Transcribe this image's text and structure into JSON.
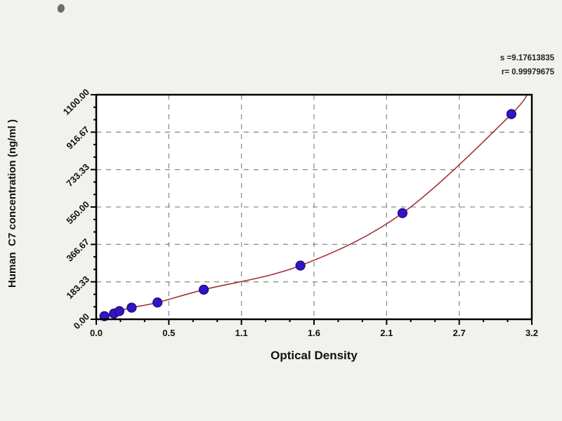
{
  "chart": {
    "xlabel": "Optical Density",
    "ylabel": "Human  C7 concentration (ng/ml )",
    "annotation": {
      "s_line": "s =9.17613835",
      "r_line": "r= 0.99979675"
    }
  },
  "chart_data": {
    "type": "scatter",
    "title": "",
    "xlabel": "Optical Density",
    "ylabel": "Human C7 concentration (ng/ml)",
    "xlim": [
      0,
      3.2
    ],
    "ylim": [
      0,
      1100
    ],
    "x_ticks": {
      "values": [
        0,
        0.5333,
        1.0667,
        1.6,
        2.1333,
        2.6667,
        3.2
      ],
      "labels": [
        "0.0",
        "0.5",
        "1.1",
        "1.6",
        "2.1",
        "2.7",
        "3.2"
      ]
    },
    "y_ticks": {
      "values": [
        0,
        183.33,
        366.67,
        550,
        733.33,
        916.67,
        1100
      ],
      "labels": [
        "0.00",
        "183.33",
        "366.67",
        "550.00",
        "733.33",
        "916.67",
        "1100.00"
      ]
    },
    "minor_ticks_per_interval": 2,
    "grid": "dashed",
    "legend": "none",
    "annotations": [
      "s =9.17613835",
      "r= 0.99979675"
    ],
    "series": [
      {
        "name": "standard-points",
        "type": "scatter",
        "color": "#3314c6",
        "points": [
          [
            0.06,
            15
          ],
          [
            0.13,
            28
          ],
          [
            0.17,
            40
          ],
          [
            0.26,
            57
          ],
          [
            0.45,
            82
          ],
          [
            0.79,
            145
          ],
          [
            1.5,
            263
          ],
          [
            2.25,
            520
          ],
          [
            3.05,
            1005
          ]
        ]
      },
      {
        "name": "fitted-curve",
        "type": "line",
        "color": "#a13036",
        "points": [
          [
            0.03,
            10
          ],
          [
            0.06,
            15
          ],
          [
            0.13,
            28
          ],
          [
            0.17,
            40
          ],
          [
            0.26,
            57
          ],
          [
            0.45,
            82
          ],
          [
            0.79,
            145
          ],
          [
            1.5,
            263
          ],
          [
            2.25,
            520
          ],
          [
            3.05,
            1005
          ],
          [
            3.18,
            1135
          ]
        ]
      }
    ]
  },
  "colors": {
    "background": "#f1f1ee",
    "plot_background": "#ffffff",
    "frame": "#000000",
    "grid": "#8f8f8f",
    "point_fill": "#3314c6",
    "point_stroke": "#1b0a70",
    "curve": "#a13036",
    "text": "#111111"
  }
}
